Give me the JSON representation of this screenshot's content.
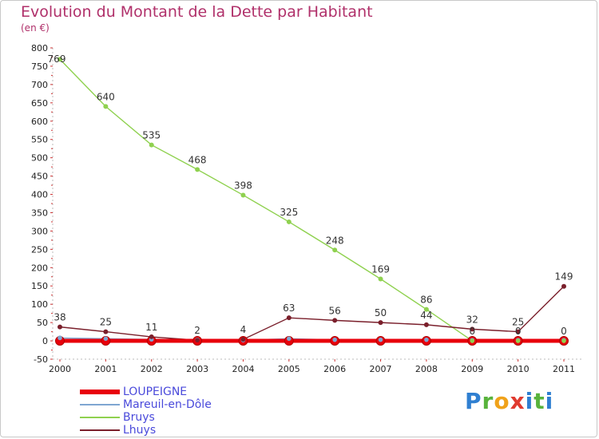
{
  "title": "Evolution du Montant de la Dette par Habitant",
  "subtitle": "(en €)",
  "logo_text": "Proxiti",
  "chart_data": {
    "type": "line",
    "title": "Evolution du Montant de la Dette par Habitant",
    "subtitle": "(en €)",
    "xlabel": "",
    "ylabel": "",
    "x": [
      "2000",
      "2001",
      "2002",
      "2003",
      "2004",
      "2005",
      "2006",
      "2007",
      "2008",
      "2009",
      "2010",
      "2011"
    ],
    "ylim": [
      -50,
      800
    ],
    "yticks": [
      -50,
      0,
      50,
      100,
      150,
      200,
      250,
      300,
      350,
      400,
      450,
      500,
      550,
      600,
      650,
      700,
      750,
      800
    ],
    "grid": false,
    "legend_position": "bottom-left",
    "series": [
      {
        "name": "LOUPEIGNE",
        "color": "#e8000b",
        "values": [
          0,
          0,
          0,
          0,
          0,
          0,
          0,
          0,
          0,
          0,
          0,
          0
        ]
      },
      {
        "name": "Mareuil-en-Dôle",
        "color": "#7ea6d1",
        "values": [
          8,
          6,
          4,
          3,
          2,
          6,
          3,
          3,
          3,
          2,
          2,
          2
        ]
      },
      {
        "name": "Bruys",
        "color": "#8fd14f",
        "values": [
          769,
          640,
          535,
          468,
          398,
          325,
          248,
          169,
          86,
          0,
          0,
          0
        ]
      },
      {
        "name": "Lhuys",
        "color": "#7a1f2b",
        "values": [
          38,
          25,
          11,
          2,
          4,
          63,
          56,
          50,
          44,
          32,
          25,
          149
        ]
      }
    ],
    "annotations": [
      {
        "series": "Bruys",
        "labels": [
          "769",
          "640",
          "535",
          "468",
          "398",
          "325",
          "248",
          "169",
          "86",
          "0",
          "0",
          "0"
        ]
      },
      {
        "series": "Lhuys",
        "labels": [
          "38",
          "25",
          "11",
          "2",
          "4",
          "63",
          "56",
          "50",
          "44",
          "32",
          "25",
          "149"
        ]
      }
    ]
  }
}
